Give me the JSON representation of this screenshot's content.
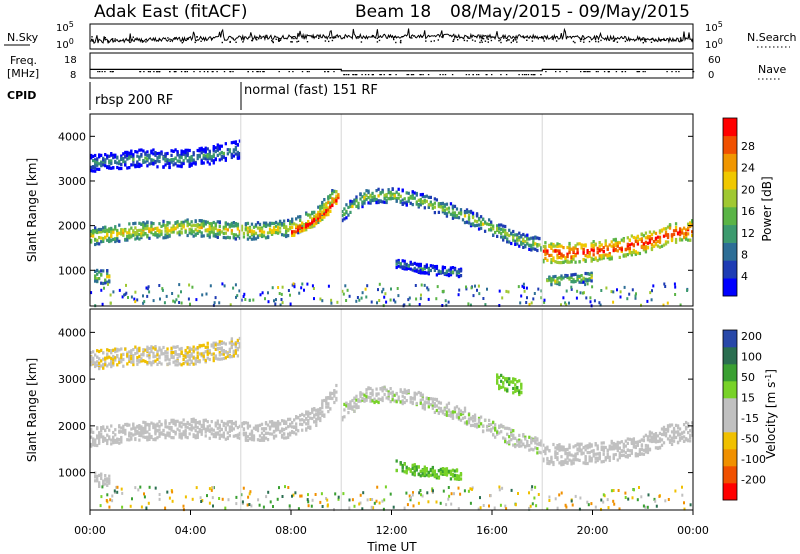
{
  "header": {
    "title": "Adak East (fitACF)",
    "beam_label": "Beam 18",
    "date_range": "08/May/2015 - 09/May/2015"
  },
  "colors": {
    "noise_line": "#000000",
    "power_scale": [
      "#0000ff",
      "#1e3cb4",
      "#2d6e96",
      "#3c9a6e",
      "#5ab446",
      "#a0c832",
      "#f0c800",
      "#f09600",
      "#f05000",
      "#ff0000"
    ],
    "velocity_scale": [
      "#2848a8",
      "#2a6e50",
      "#3aa032",
      "#78d228",
      "#c0c0c0",
      "#c0c0c0",
      "#f0c000",
      "#f09000",
      "#f05000",
      "#ff0000"
    ]
  },
  "chart_data": [
    {
      "name": "noise_panel",
      "type": "line",
      "left_label": "N.Sky",
      "right_label": "N.Search",
      "ticks_left": [
        "10^5",
        "10^0"
      ],
      "ticks_right": [
        "10^5",
        "10^0"
      ]
    },
    {
      "name": "frequency_panel",
      "type": "line",
      "left_label": "Freq.",
      "left_unit": "[MHz]",
      "right_label": "Nave",
      "ticks_left": [
        "18",
        "8"
      ],
      "ticks_right": [
        "60",
        "0"
      ],
      "x": [
        0,
        10,
        10,
        18,
        18,
        24
      ],
      "freq_mhz": [
        11.3,
        11.3,
        10.6,
        10.6,
        11.3,
        11.3
      ]
    },
    {
      "name": "cpid_panel",
      "type": "table",
      "label": "CPID",
      "segments": [
        {
          "label": "rbsp 200 RF",
          "start_hour": 0,
          "end_hour": 6
        },
        {
          "label": "normal (fast) 151 RF",
          "start_hour": 6,
          "end_hour": 24
        }
      ]
    },
    {
      "name": "power_panel",
      "type": "heatmap",
      "ylabel": "Slant Range [km]",
      "yticks": [
        1000,
        2000,
        3000,
        4000
      ],
      "ylim": [
        200,
        4500
      ],
      "colorbar_label": "Power [dB]",
      "colorbar_ticks": [
        28,
        24,
        20,
        16,
        12,
        8,
        4
      ],
      "clim": [
        0,
        32
      ],
      "bands": [
        {
          "x": [
            0,
            2,
            4,
            6,
            7,
            8,
            9,
            9.8
          ],
          "y": [
            1750,
            1880,
            1950,
            1880,
            1880,
            1950,
            2200,
            2700
          ],
          "width": 170,
          "v": 16
        },
        {
          "x": [
            8,
            8.8,
            9.5,
            9.9
          ],
          "y": [
            1850,
            2050,
            2350,
            2650
          ],
          "width": 90,
          "v": 26
        },
        {
          "x": [
            10,
            11,
            12,
            13,
            14,
            15,
            16,
            17,
            18
          ],
          "y": [
            2250,
            2650,
            2680,
            2580,
            2400,
            2200,
            1950,
            1700,
            1550
          ],
          "width": 150,
          "v": 12
        },
        {
          "x": [
            18,
            19,
            20,
            21,
            22,
            23,
            24
          ],
          "y": [
            1400,
            1380,
            1420,
            1480,
            1600,
            1800,
            1900
          ],
          "width": 200,
          "v": 24
        },
        {
          "x": [
            0,
            2,
            4,
            5,
            6
          ],
          "y": [
            3400,
            3500,
            3500,
            3600,
            3700
          ],
          "width": 180,
          "v": 6
        },
        {
          "x": [
            12.2,
            13,
            14,
            14.8
          ],
          "y": [
            1150,
            1050,
            980,
            950
          ],
          "width": 90,
          "v": 6
        },
        {
          "x": [
            0.2,
            0.8
          ],
          "y": [
            850,
            850
          ],
          "width": 140,
          "v": 14
        },
        {
          "x": [
            18.2,
            19,
            20
          ],
          "y": [
            750,
            800,
            850
          ],
          "width": 90,
          "v": 14
        }
      ]
    },
    {
      "name": "velocity_panel",
      "type": "heatmap",
      "ylabel": "Slant Range [km]",
      "yticks": [
        1000,
        2000,
        3000,
        4000
      ],
      "ylim": [
        200,
        4500
      ],
      "colorbar_label": "Velocity [m s^-1]",
      "colorbar_ticks": [
        200,
        100,
        50,
        15,
        -15,
        -50,
        -100,
        -200
      ],
      "clim": [
        -250,
        250
      ],
      "bands": [
        {
          "x": [
            0,
            2,
            4,
            6,
            7,
            8,
            9,
            9.8
          ],
          "y": [
            1750,
            1880,
            1950,
            1880,
            1880,
            1950,
            2200,
            2700
          ],
          "width": 180,
          "v": 0
        },
        {
          "x": [
            10,
            11,
            12,
            13,
            14,
            15,
            16,
            17,
            18
          ],
          "y": [
            2250,
            2650,
            2680,
            2580,
            2400,
            2200,
            1950,
            1700,
            1550
          ],
          "width": 150,
          "v": 5
        },
        {
          "x": [
            18,
            19,
            20,
            21,
            22,
            23,
            24
          ],
          "y": [
            1400,
            1380,
            1420,
            1480,
            1600,
            1800,
            1900
          ],
          "width": 200,
          "v": 0
        },
        {
          "x": [
            0,
            2,
            4,
            5,
            6
          ],
          "y": [
            3400,
            3500,
            3500,
            3600,
            3700
          ],
          "width": 180,
          "v": -45
        },
        {
          "x": [
            12.2,
            13,
            14,
            14.8
          ],
          "y": [
            1150,
            1050,
            980,
            950
          ],
          "width": 100,
          "v": 45
        },
        {
          "x": [
            16.2,
            17.2
          ],
          "y": [
            2950,
            2800
          ],
          "width": 140,
          "v": 40
        },
        {
          "x": [
            0.2,
            0.8
          ],
          "y": [
            850,
            850
          ],
          "width": 140,
          "v": 0
        }
      ]
    }
  ],
  "x_axis": {
    "ticks": [
      "00:00",
      "04:00",
      "08:00",
      "12:00",
      "16:00",
      "20:00",
      "00:00"
    ],
    "label": "Time UT"
  }
}
